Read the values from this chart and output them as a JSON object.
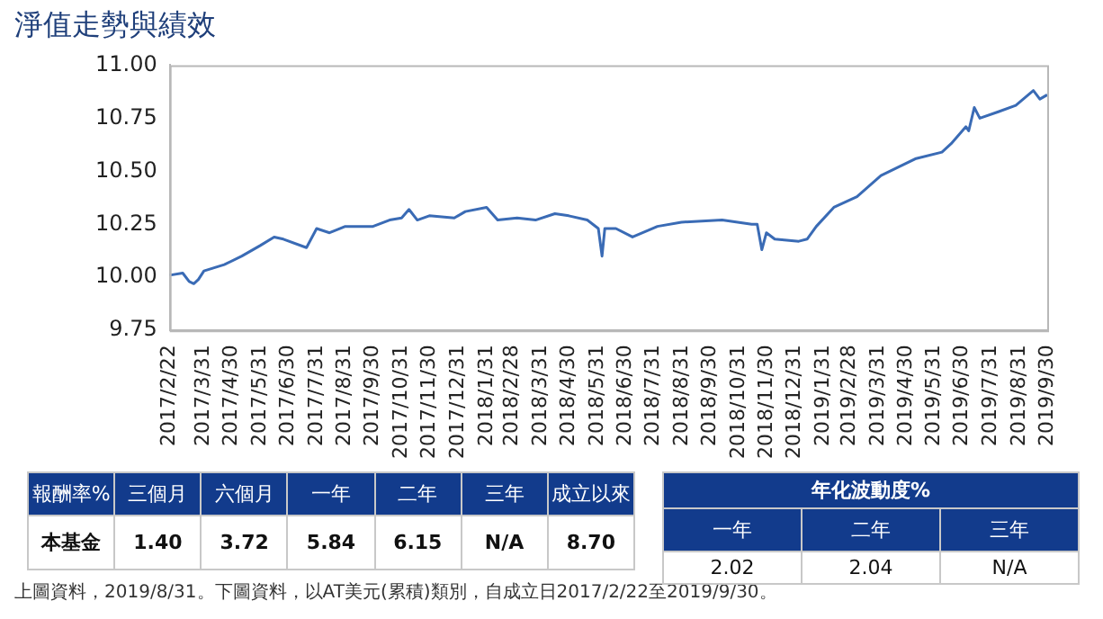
{
  "chart_data": [
    {
      "type": "line",
      "title": "淨值走勢與績效",
      "series": [
        {
          "color": "#3a6bb5",
          "x": [
            "2017-02-22",
            "2017-03-08",
            "2017-03-15",
            "2017-03-20",
            "2017-03-25",
            "2017-03-31",
            "2017-04-22",
            "2017-05-11",
            "2017-05-31",
            "2017-06-15",
            "2017-06-25",
            "2017-07-20",
            "2017-07-31",
            "2017-08-14",
            "2017-08-31",
            "2017-09-20",
            "2017-09-30",
            "2017-10-18",
            "2017-10-31",
            "2017-11-08",
            "2017-11-17",
            "2017-11-30",
            "2017-12-27",
            "2018-01-08",
            "2018-01-31",
            "2018-02-12",
            "2018-03-05",
            "2018-03-25",
            "2018-04-15",
            "2018-04-30",
            "2018-05-20",
            "2018-06-01",
            "2018-06-05",
            "2018-06-08",
            "2018-06-20",
            "2018-07-08",
            "2018-08-04",
            "2018-08-30",
            "2018-10-13",
            "2018-11-14",
            "2018-11-20",
            "2018-11-25",
            "2018-11-30",
            "2018-12-09",
            "2019-01-04",
            "2019-01-13",
            "2019-01-23",
            "2019-02-11",
            "2019-03-08",
            "2019-04-03",
            "2019-04-22",
            "2019-05-11",
            "2019-06-08",
            "2019-06-18",
            "2019-07-04",
            "2019-07-07",
            "2019-07-13",
            "2019-07-19",
            "2019-08-08",
            "2019-08-27",
            "2019-09-15",
            "2019-09-22",
            "2019-09-30"
          ],
          "values": [
            10.01,
            10.02,
            9.98,
            9.97,
            9.99,
            10.03,
            10.06,
            10.1,
            10.15,
            10.19,
            10.18,
            10.14,
            10.23,
            10.21,
            10.24,
            10.24,
            10.24,
            10.27,
            10.28,
            10.32,
            10.27,
            10.29,
            10.28,
            10.31,
            10.33,
            10.27,
            10.28,
            10.27,
            10.3,
            10.29,
            10.27,
            10.23,
            10.1,
            10.23,
            10.23,
            10.19,
            10.24,
            10.26,
            10.27,
            10.25,
            10.25,
            10.13,
            10.21,
            10.18,
            10.17,
            10.18,
            10.24,
            10.33,
            10.38,
            10.48,
            10.52,
            10.56,
            10.59,
            10.63,
            10.71,
            10.69,
            10.8,
            10.75,
            10.78,
            10.81,
            10.88,
            10.84,
            10.86
          ]
        }
      ],
      "xlim": [
        "2017-02-22",
        "2019-09-30"
      ],
      "xticks": [
        {
          "value": "2017-02-22",
          "label": "2017/2/22"
        },
        {
          "value": "2017-03-31",
          "label": "2017/3/31"
        },
        {
          "value": "2017-04-30",
          "label": "2017/4/30"
        },
        {
          "value": "2017-05-31",
          "label": "2017/5/31"
        },
        {
          "value": "2017-06-30",
          "label": "2017/6/30"
        },
        {
          "value": "2017-07-31",
          "label": "2017/7/31"
        },
        {
          "value": "2017-08-31",
          "label": "2017/8/31"
        },
        {
          "value": "2017-09-30",
          "label": "2017/9/30"
        },
        {
          "value": "2017-10-31",
          "label": "2017/10/31"
        },
        {
          "value": "2017-11-30",
          "label": "2017/11/30"
        },
        {
          "value": "2017-12-31",
          "label": "2017/12/31"
        },
        {
          "value": "2018-01-31",
          "label": "2018/1/31"
        },
        {
          "value": "2018-02-28",
          "label": "2018/2/28"
        },
        {
          "value": "2018-03-31",
          "label": "2018/3/31"
        },
        {
          "value": "2018-04-30",
          "label": "2018/4/30"
        },
        {
          "value": "2018-05-31",
          "label": "2018/5/31"
        },
        {
          "value": "2018-06-30",
          "label": "2018/6/30"
        },
        {
          "value": "2018-07-31",
          "label": "2018/7/31"
        },
        {
          "value": "2018-08-31",
          "label": "2018/8/31"
        },
        {
          "value": "2018-09-30",
          "label": "2018/9/30"
        },
        {
          "value": "2018-10-31",
          "label": "2018/10/31"
        },
        {
          "value": "2018-11-30",
          "label": "2018/11/30"
        },
        {
          "value": "2018-12-31",
          "label": "2018/12/31"
        },
        {
          "value": "2019-01-31",
          "label": "2019/1/31"
        },
        {
          "value": "2019-02-28",
          "label": "2019/2/28"
        },
        {
          "value": "2019-03-31",
          "label": "2019/3/31"
        },
        {
          "value": "2019-04-30",
          "label": "2019/4/30"
        },
        {
          "value": "2019-05-31",
          "label": "2019/5/31"
        },
        {
          "value": "2019-06-30",
          "label": "2019/6/30"
        },
        {
          "value": "2019-07-31",
          "label": "2019/7/31"
        },
        {
          "value": "2019-08-31",
          "label": "2019/8/31"
        },
        {
          "value": "2019-09-30",
          "label": "2019/9/30"
        }
      ],
      "ylim": [
        9.75,
        11
      ],
      "yticks": [
        {
          "value": 9.75,
          "label": "9.75"
        },
        {
          "value": 10,
          "label": "10.00"
        },
        {
          "value": 10.25,
          "label": "10.25"
        },
        {
          "value": 10.5,
          "label": "10.50"
        },
        {
          "value": 10.75,
          "label": "10.75"
        },
        {
          "value": 11,
          "label": "11.00"
        }
      ],
      "marker": "none",
      "line_style": "solid",
      "annotations": [
        "上圖資料，2019/8/31。下圖資料，以AT美元(累積)類別，自成立日2017/2/22至2019/9/30。"
      ]
    },
    {
      "type": "other",
      "annotations": [
        "報酬率%",
        "三個月",
        "六個月",
        "一年",
        "二年",
        "三年",
        "成立以來",
        "本基金",
        "1.40",
        "3.72",
        "5.84",
        "6.15",
        "N/A",
        "8.70"
      ]
    },
    {
      "type": "other",
      "title": "年化波動度%",
      "annotations": [
        "一年",
        "二年",
        "三年",
        "2.02",
        "2.04",
        "N/A"
      ]
    }
  ]
}
